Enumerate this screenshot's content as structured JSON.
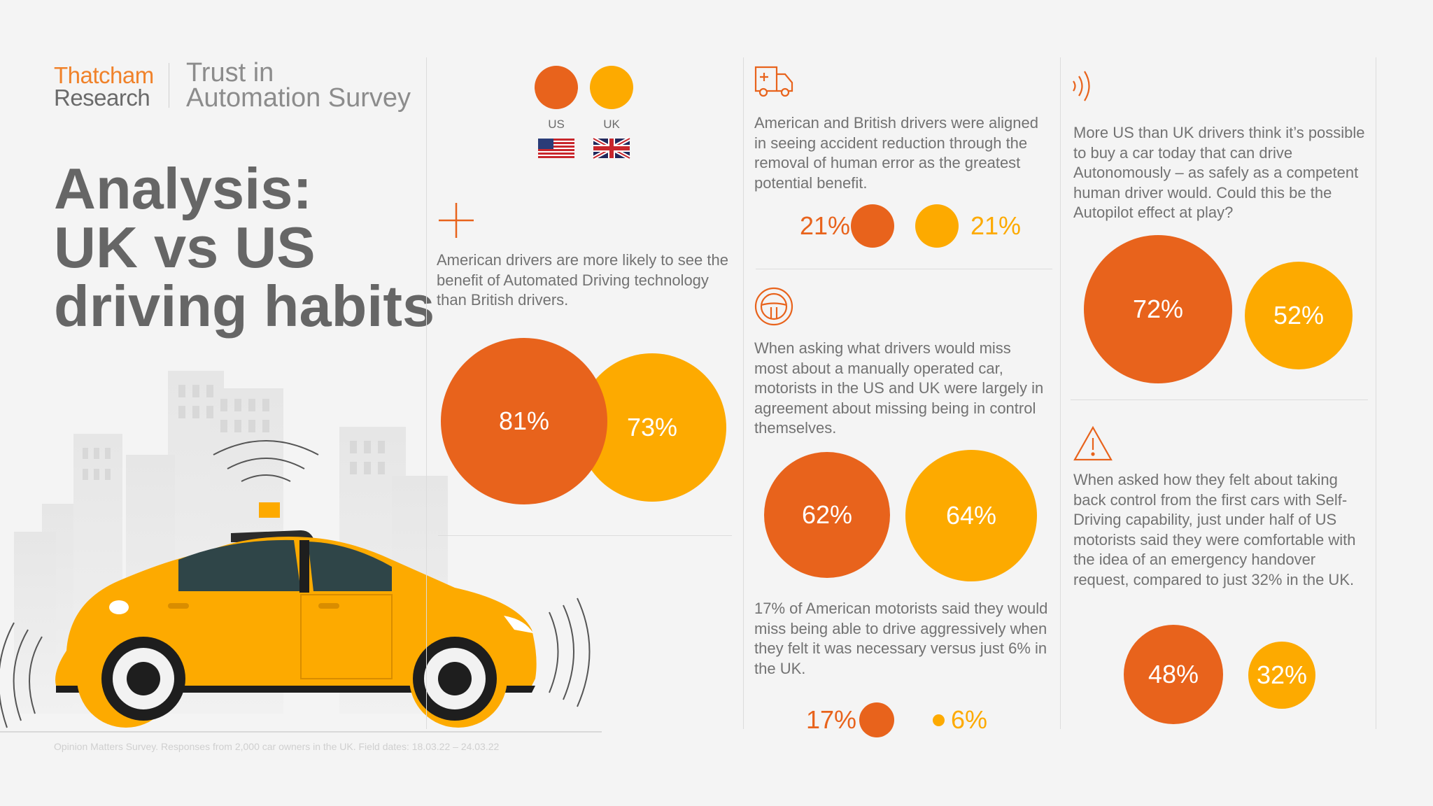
{
  "brand": {
    "line1": "Thatcham",
    "line2": "Research"
  },
  "survey_title": {
    "line1": "Trust in",
    "line2": "Automation Survey"
  },
  "headline": {
    "line1": "Analysis:",
    "line2": "UK vs US",
    "line3": "driving habits"
  },
  "footnote": "Opinion Matters Survey. Responses from 2,000 car owners in the UK. Field dates: 18.03.22 – 24.03.22",
  "legend": {
    "us_label": "US",
    "uk_label": "UK"
  },
  "colors": {
    "us": "#e8631c",
    "uk": "#fdaa00",
    "text": "#6b6b6b"
  },
  "icons": {
    "section1": "plus-icon",
    "section2": "ambulance-icon",
    "section3": "steering-wheel-icon",
    "section4": "signal-waves-icon",
    "section5": "warning-triangle-icon",
    "flags": [
      "us-flag-icon",
      "uk-flag-icon"
    ],
    "illustration": "self-driving-taxi-illustration"
  },
  "sections": {
    "benefit": {
      "text": "American drivers are more likely to see the benefit of Automated Driving technology than British drivers."
    },
    "accident": {
      "text": "American and British drivers were aligned in seeing accident reduction through the removal of human error as the greatest potential benefit."
    },
    "control": {
      "text": "When asking what drivers would miss most about a manually operated car, motorists in the US and UK were largely in agreement about missing being in control themselves."
    },
    "aggressive": {
      "text": "17% of American motorists said they would miss being able to drive aggressively when they felt it was necessary versus just 6% in the UK."
    },
    "autonomous": {
      "text": "More US than UK drivers think it’s possible to buy a car today that can drive Autonomously – as safely as a competent human driver would. Could this be the Autopilot effect at play?"
    },
    "handover": {
      "text": "When asked how they felt about taking back control from the first cars with Self-Driving capability, just under half of US motorists said they were comfortable with the idea of an emergency handover request, compared to just 32% in the UK."
    }
  },
  "chart_data": [
    {
      "type": "bubble",
      "id": "benefit",
      "categories": [
        "US",
        "UK"
      ],
      "values": [
        81,
        73
      ],
      "labels": [
        "81%",
        "73%"
      ]
    },
    {
      "type": "bubble",
      "id": "accident",
      "categories": [
        "US",
        "UK"
      ],
      "values": [
        21,
        21
      ],
      "labels": [
        "21%",
        "21%"
      ]
    },
    {
      "type": "bubble",
      "id": "control",
      "categories": [
        "US",
        "UK"
      ],
      "values": [
        62,
        64
      ],
      "labels": [
        "62%",
        "64%"
      ]
    },
    {
      "type": "bubble",
      "id": "aggressive",
      "categories": [
        "US",
        "UK"
      ],
      "values": [
        17,
        6
      ],
      "labels": [
        "17%",
        "6%"
      ]
    },
    {
      "type": "bubble",
      "id": "autonomous",
      "categories": [
        "US",
        "UK"
      ],
      "values": [
        72,
        52
      ],
      "labels": [
        "72%",
        "52%"
      ]
    },
    {
      "type": "bubble",
      "id": "handover",
      "categories": [
        "US",
        "UK"
      ],
      "values": [
        48,
        32
      ],
      "labels": [
        "48%",
        "32%"
      ]
    }
  ]
}
